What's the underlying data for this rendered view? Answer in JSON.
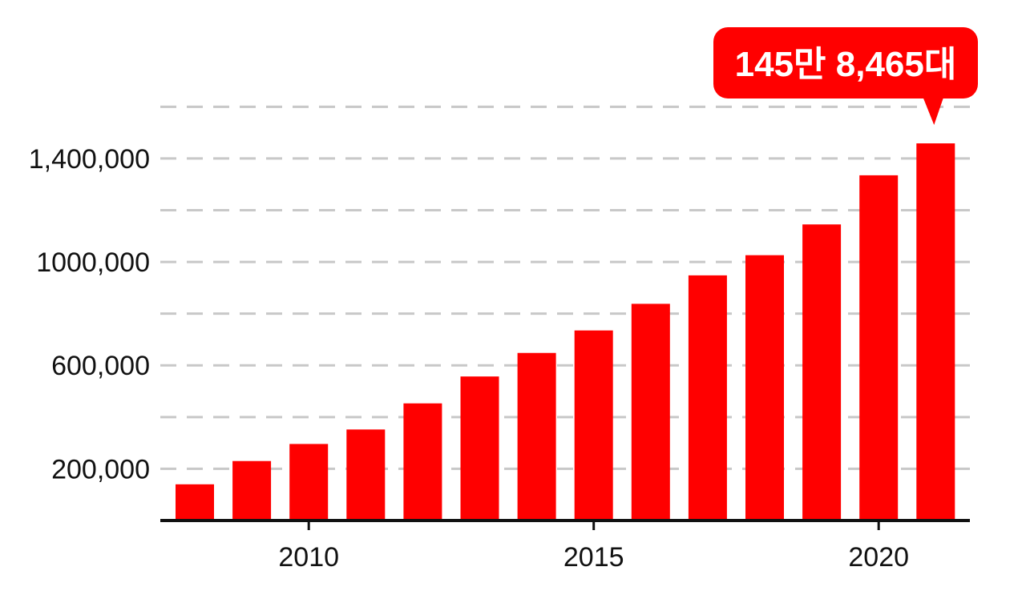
{
  "chart_data": {
    "type": "bar",
    "categories": [
      "2008",
      "2009",
      "2010",
      "2011",
      "2012",
      "2013",
      "2014",
      "2015",
      "2016",
      "2017",
      "2018",
      "2019",
      "2020",
      "2021"
    ],
    "x_tick_labels": [
      "2010",
      "2015",
      "2020"
    ],
    "values": [
      140000,
      230000,
      296000,
      352000,
      453000,
      557000,
      648000,
      735000,
      838000,
      948000,
      1026000,
      1145000,
      1335000,
      1458465
    ],
    "y_tick_labels": [
      "200,000",
      "600,000",
      "1000,000",
      "1,400,000"
    ],
    "y_tick_values": [
      200000,
      600000,
      1000000,
      1400000
    ],
    "ylim": [
      0,
      1600000
    ],
    "grid": true,
    "grid_step": 200000,
    "title": "",
    "xlabel": "",
    "ylabel": "",
    "callout": {
      "text": "145만 8,465대",
      "category": "2021"
    },
    "colors": {
      "bar": "#ff0000",
      "callout": "#ff0000",
      "grid": "#c8c8c8",
      "axis": "#111111"
    }
  }
}
